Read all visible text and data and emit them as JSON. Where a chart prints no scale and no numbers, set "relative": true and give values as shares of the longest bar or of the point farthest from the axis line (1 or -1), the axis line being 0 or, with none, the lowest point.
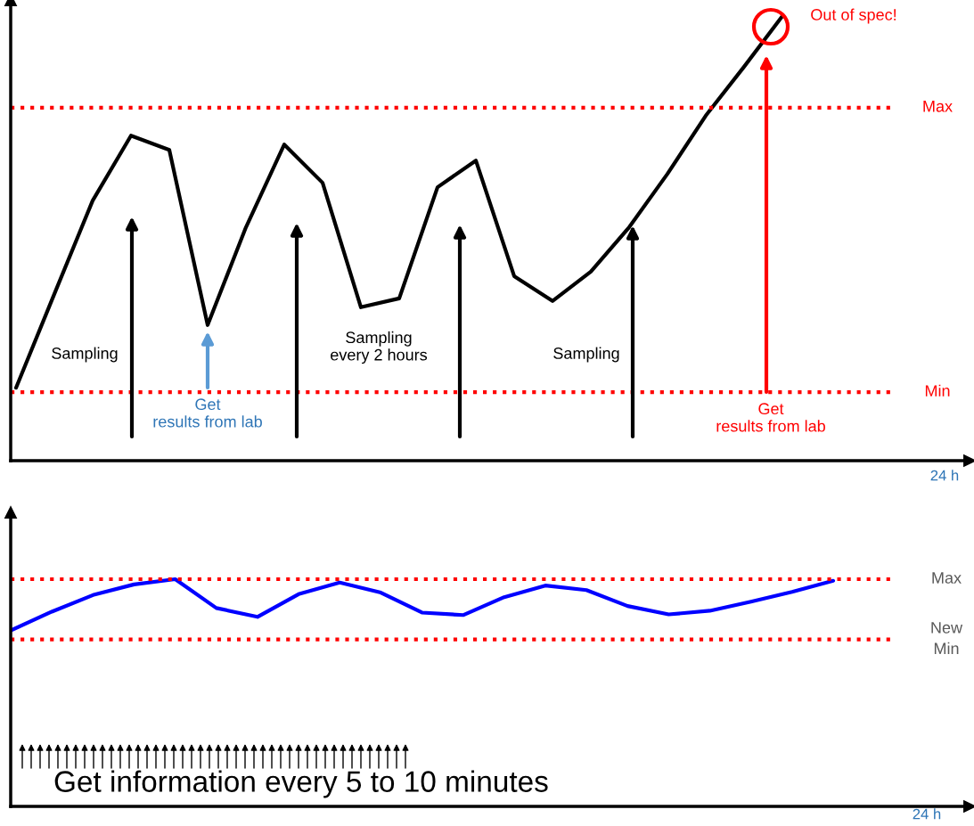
{
  "chart_data": [
    {
      "type": "line",
      "relative": true,
      "marker": "none",
      "line_style": "solid",
      "categories": [
        null,
        null,
        null,
        null,
        null,
        null,
        null,
        null,
        null,
        null,
        null,
        null,
        null,
        null,
        null,
        null,
        null,
        null,
        null,
        null,
        null,
        null,
        null,
        null,
        null
      ],
      "series": [
        {
          "color": "#000000",
          "values": [
            0.164,
            0.375,
            0.585,
            0.731,
            0.699,
            0.305,
            0.525,
            0.711,
            0.625,
            0.345,
            0.365,
            0.615,
            0.675,
            0.415,
            0.359,
            0.425,
            0.525,
            0.645,
            0.776,
            0.886,
            1.0,
            null,
            null,
            null,
            null
          ]
        }
      ],
      "ref_lines": [
        {
          "axis": "y",
          "value": 0.794,
          "label": "Max",
          "color": "#ff0000",
          "line_style": "dotted"
        },
        {
          "axis": "y",
          "value": 0.154,
          "label": "Min",
          "color": "#ff0000",
          "line_style": "dotted"
        }
      ],
      "annotations": [
        "Sampling",
        "Sampling\nevery 2 hours",
        "Sampling",
        "Get\nresults from lab",
        "Get\nresults from lab",
        "Out of spec!",
        "24 h"
      ]
    },
    {
      "type": "line",
      "relative": true,
      "marker": "none",
      "line_style": "solid",
      "categories": [
        null,
        null,
        null,
        null,
        null,
        null,
        null,
        null,
        null,
        null,
        null,
        null,
        null,
        null,
        null,
        null,
        null,
        null,
        null,
        null,
        null,
        null,
        null,
        null
      ],
      "series": [
        {
          "color": "#0000ff",
          "values": [
            0.774,
            0.857,
            0.93,
            0.977,
            1.0,
            0.873,
            0.834,
            0.934,
            0.985,
            0.941,
            0.853,
            0.842,
            0.921,
            0.972,
            0.952,
            0.882,
            0.845,
            0.861,
            0.901,
            0.944,
            0.993,
            null,
            null,
            null
          ]
        }
      ],
      "ref_lines": [
        {
          "axis": "y",
          "value": 1.0,
          "label": "Max",
          "color": "#ff0000",
          "line_style": "dotted"
        },
        {
          "axis": "y",
          "value": 0.735,
          "label": "New\nMin",
          "color": "#ff0000",
          "line_style": "dotted"
        }
      ],
      "annotations": [
        "Get information every 5 to 10 minutes",
        "24 h"
      ]
    }
  ]
}
